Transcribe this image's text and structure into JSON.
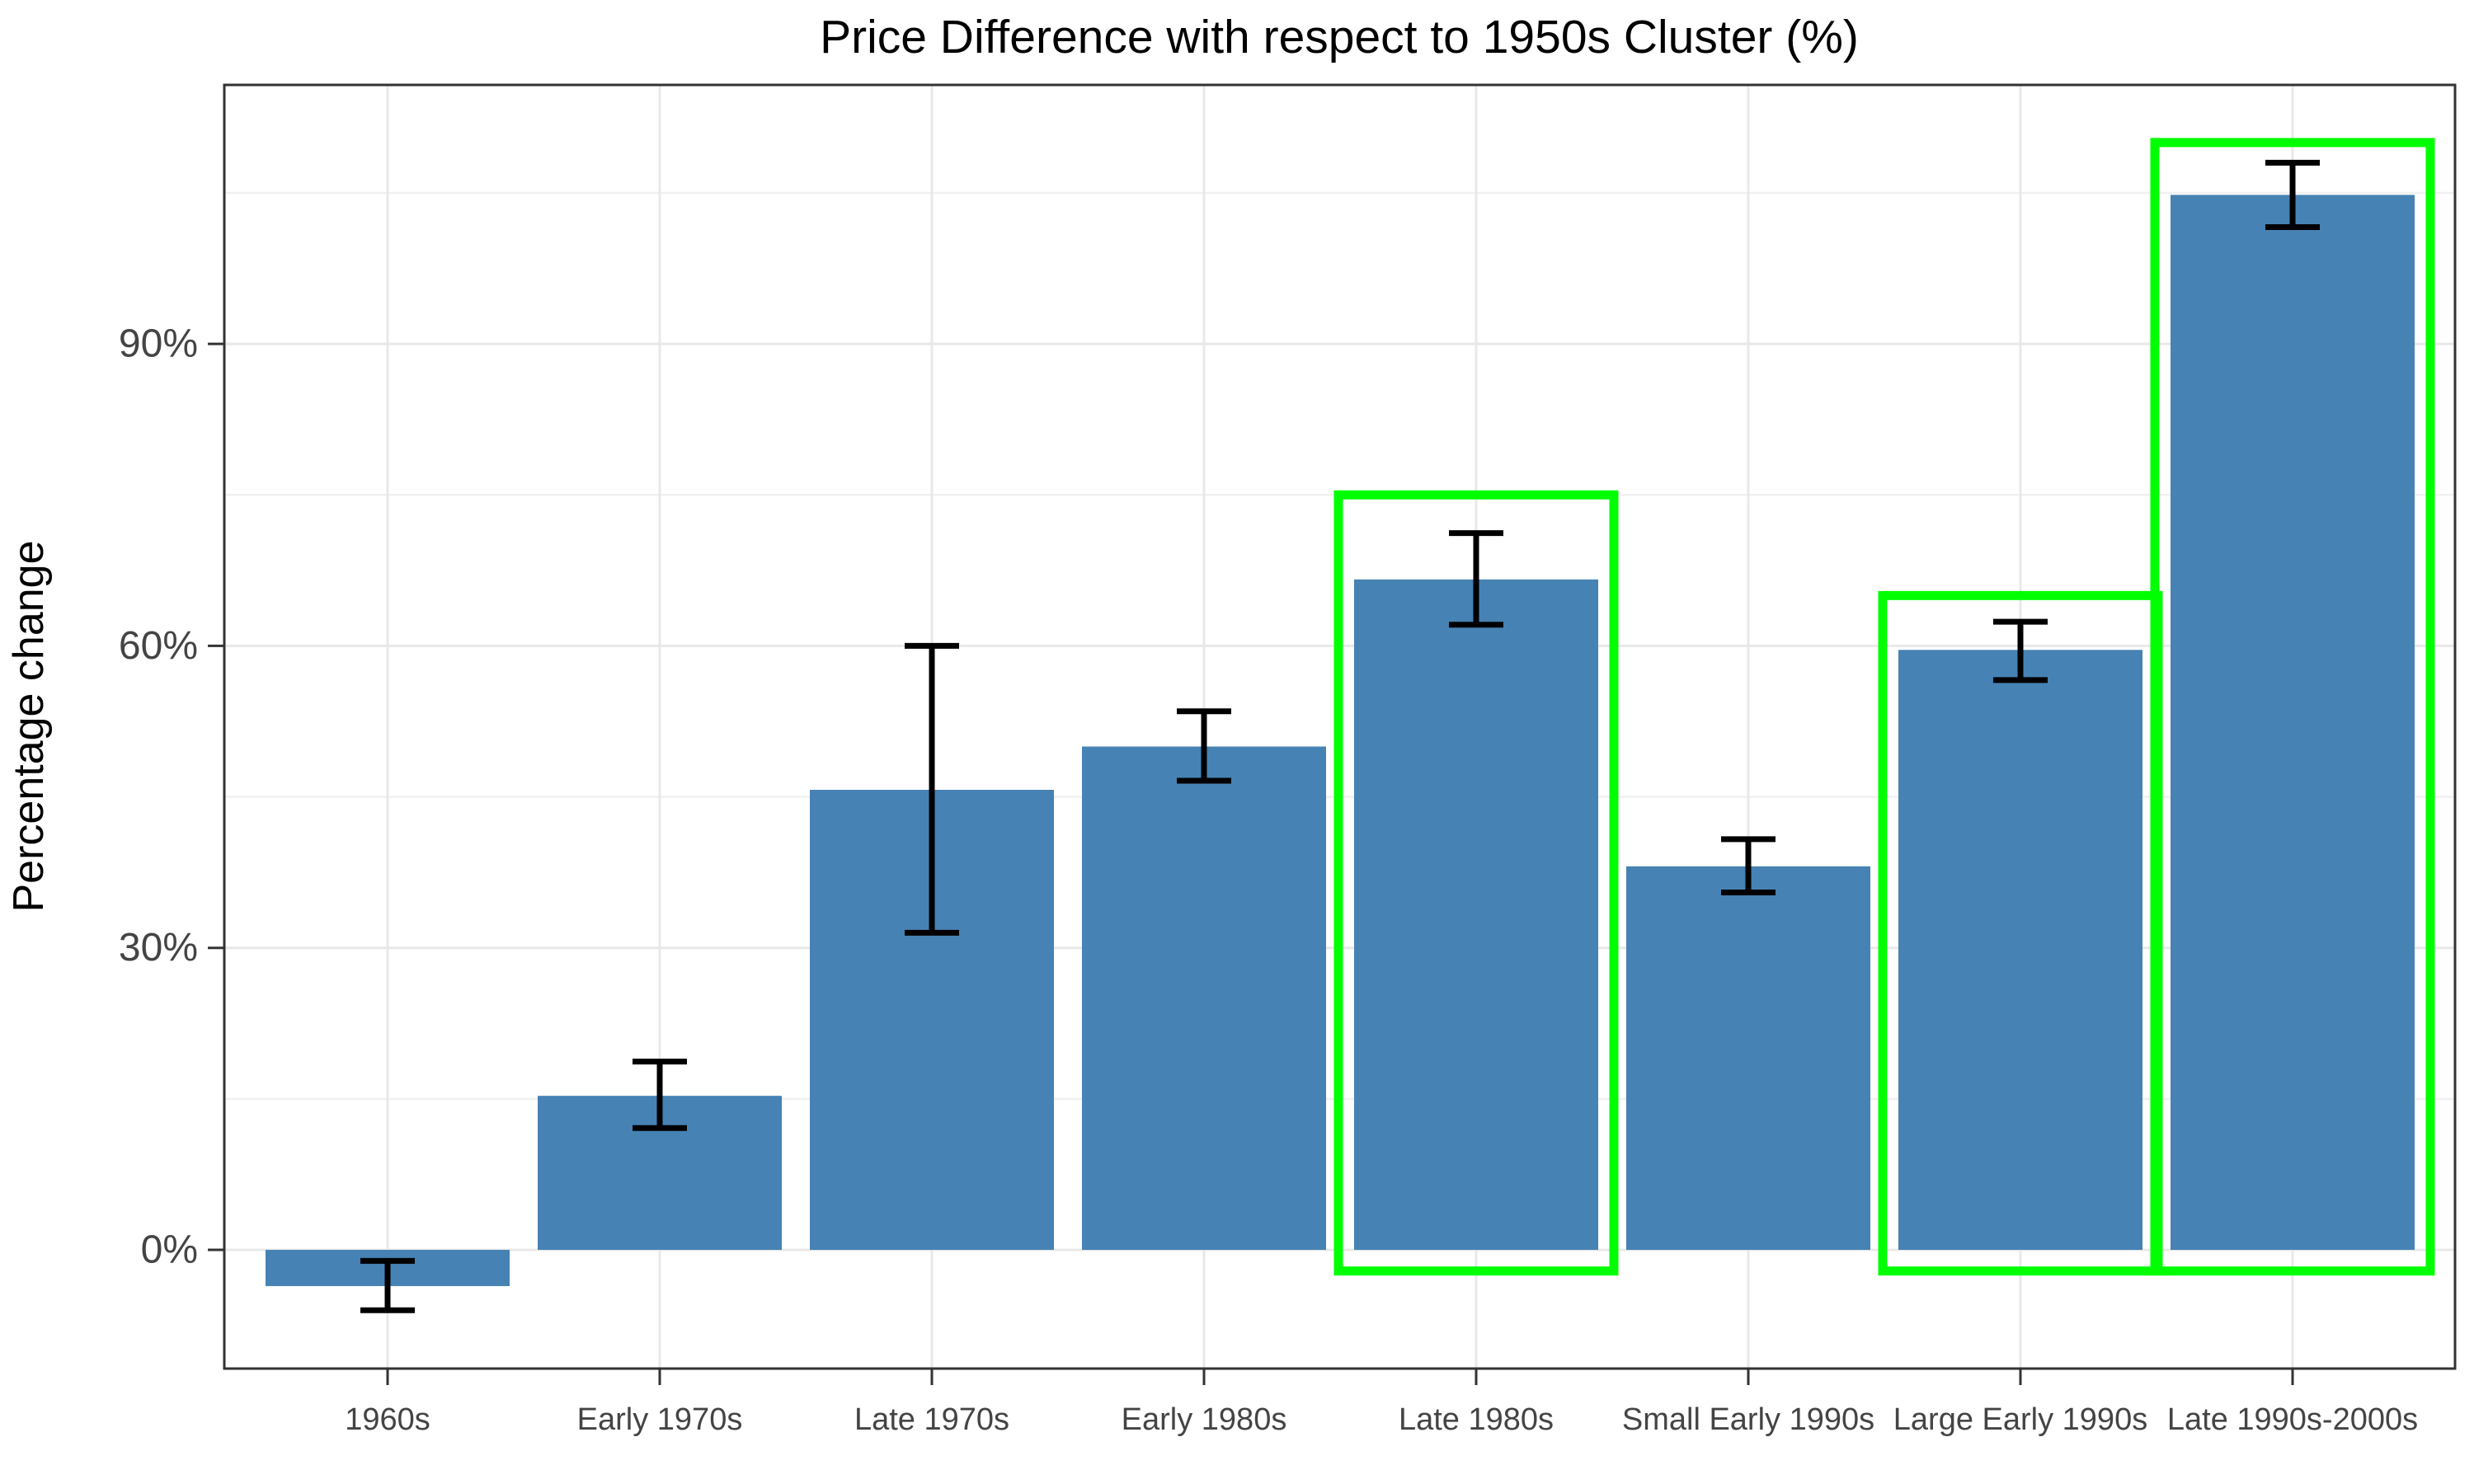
{
  "figure": {
    "title": "Price Difference with respect to 1950s Cluster (%)",
    "ylabel": "Percentage change"
  },
  "chart_data": {
    "type": "bar",
    "title": "Price Difference with respect to 1950s Cluster (%)",
    "xlabel": "",
    "ylabel": "Percentage change",
    "categories": [
      "1960s",
      "Early 1970s",
      "Late 1970s",
      "Early 1980s",
      "Late 1980s",
      "Small Early 1990s",
      "Large Early 1990s",
      "Late 1990s-2000s"
    ],
    "values": [
      -3.6,
      15.3,
      45.7,
      50.0,
      66.6,
      38.1,
      59.6,
      104.8
    ],
    "error_low": [
      -6.0,
      12.1,
      31.5,
      46.6,
      62.1,
      35.5,
      56.6,
      101.6
    ],
    "error_high": [
      -1.1,
      18.7,
      60.0,
      53.5,
      71.2,
      40.8,
      62.4,
      108.0
    ],
    "highlighted_categories": [
      "Late 1980s",
      "Large Early 1990s",
      "Late 1990s-2000s"
    ],
    "highlight_box_top": [
      null,
      null,
      null,
      null,
      75,
      null,
      65,
      110
    ],
    "highlight_box_bottom": -2.1,
    "yticks": {
      "values": [
        0,
        30,
        60,
        90
      ],
      "labels": [
        "0%",
        "30%",
        "60%",
        "90%"
      ]
    },
    "minor_gridlines": [
      15,
      45,
      75,
      105
    ],
    "ylim": [
      -11.8,
      115.8
    ],
    "grid": true,
    "legend": "none",
    "colors": {
      "bar": "#4682B4",
      "highlight_box": "#00FF00",
      "error_bar": "#000000",
      "gridline_major": "#E8E8E8",
      "gridline_minor": "#F0F0F0",
      "panel_border": "#333333",
      "tick": "#333333",
      "tick_label": "#444444",
      "title": "#000000",
      "axis_label": "#000000",
      "background": "#FFFFFF"
    }
  }
}
